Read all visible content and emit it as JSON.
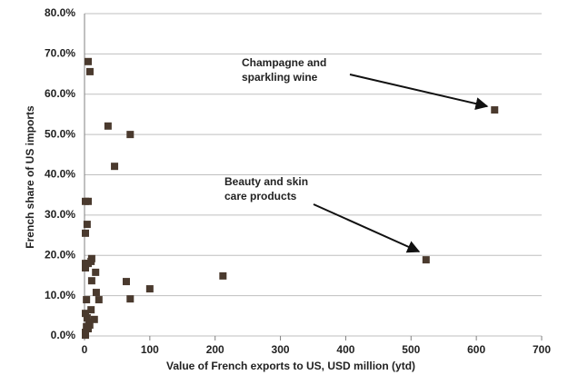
{
  "chart_data": {
    "type": "scatter",
    "x_label": "Value of French exports to US, USD million (ytd)",
    "y_label": "French share of US imports",
    "color": "#4a3a2e",
    "grid": true,
    "xlim": [
      0,
      700
    ],
    "xticks": [
      0,
      100,
      200,
      300,
      400,
      500,
      600,
      700
    ],
    "ylim": [
      0,
      80
    ],
    "yticks": [
      {
        "value": 0,
        "label": "0.0%"
      },
      {
        "value": 10,
        "label": "10.0%"
      },
      {
        "value": 20,
        "label": "20.0%"
      },
      {
        "value": 30,
        "label": "30.0%"
      },
      {
        "value": 40,
        "label": "40.0%"
      },
      {
        "value": 50,
        "label": "50.0%"
      },
      {
        "value": 60,
        "label": "60.0%"
      },
      {
        "value": 70,
        "label": "70.0%"
      },
      {
        "value": 80,
        "label": "80.0%"
      }
    ],
    "x": [
      5.6,
      8.3,
      36,
      70,
      46,
      628,
      523,
      212,
      100,
      64,
      70,
      1.4,
      5.6,
      4,
      1.4,
      1.4,
      5.6,
      10,
      11,
      1.4,
      17,
      11,
      18,
      22,
      3,
      10,
      15,
      1.4,
      4,
      7,
      3,
      1.4,
      5.6,
      1.4,
      8
    ],
    "values": [
      68.1,
      65.6,
      52.1,
      50.0,
      42.1,
      56.1,
      18.9,
      14.9,
      11.7,
      13.5,
      9.2,
      33.4,
      33.4,
      27.7,
      25.5,
      18,
      18,
      18.5,
      19.2,
      16.9,
      15.8,
      13.7,
      10.8,
      9.0,
      9.0,
      6.5,
      4.1,
      5.6,
      4.5,
      3.4,
      2.3,
      0.9,
      1.8,
      0.2,
      2.7
    ],
    "annotations": [
      {
        "lines": [
          "Champagne and",
          "sparkling wine"
        ]
      },
      {
        "lines": [
          "Beauty and skin",
          "care products"
        ]
      }
    ]
  }
}
